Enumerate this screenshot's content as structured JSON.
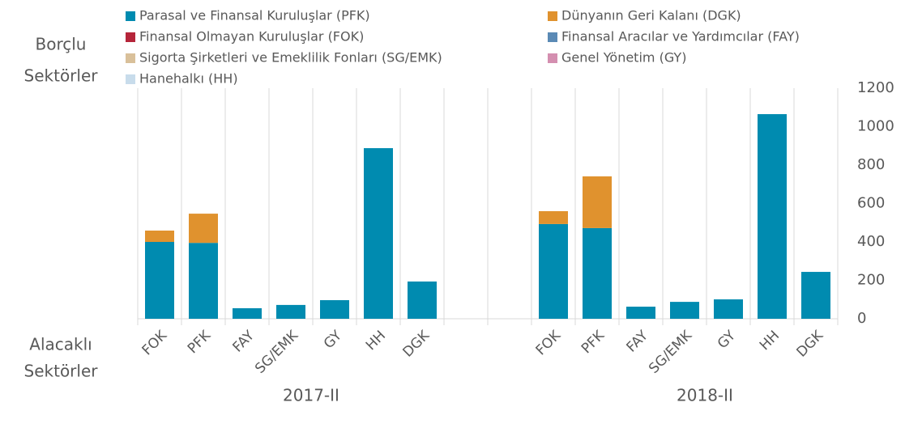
{
  "chart_data": {
    "type": "stacked_bar",
    "annotations": [
      "Borçlu",
      "Sektörler",
      "Alacaklı",
      "Sektörler"
    ],
    "group_labels": [
      "2017-II",
      "2018-II"
    ],
    "categories": [
      "FOK",
      "PFK",
      "FAY",
      "SG/EMK",
      "GY",
      "HH",
      "DGK",
      null,
      null,
      "FOK",
      "PFK",
      "FAY",
      "SG/EMK",
      "GY",
      "HH",
      "DGK"
    ],
    "series": [
      {
        "name": "Parasal ve Finansal Kuruluşlar (PFK)",
        "color": "#008bb0",
        "values": [
          400,
          395,
          55,
          72,
          97,
          888,
          194,
          null,
          null,
          493,
          472,
          63,
          88,
          101,
          1065,
          244
        ]
      },
      {
        "name": "Dünyanın Geri Kalanı (DGK)",
        "color": "#e0922e",
        "values": [
          59,
          152,
          null,
          null,
          null,
          null,
          null,
          null,
          null,
          67,
          269,
          null,
          null,
          null,
          null,
          null
        ]
      },
      {
        "name": "Finansal Olmayan Kuruluşlar (FOK)",
        "color": "#b5253a",
        "values": [
          null,
          null,
          null,
          null,
          null,
          null,
          null,
          null,
          null,
          null,
          null,
          null,
          null,
          null,
          null,
          null
        ]
      },
      {
        "name": "Finansal Aracılar ve Yardımcılar (FAY)",
        "color": "#5b8ab5",
        "values": [
          null,
          null,
          null,
          null,
          null,
          null,
          null,
          null,
          null,
          null,
          null,
          null,
          null,
          null,
          null,
          null
        ]
      },
      {
        "name": " Sigorta Şirketleri ve Emeklilik Fonları (SG/EMK)",
        "color": "#d9c09a",
        "values": [
          null,
          null,
          null,
          null,
          null,
          null,
          null,
          null,
          null,
          null,
          null,
          null,
          null,
          null,
          null,
          null
        ]
      },
      {
        "name": "Genel Yönetim (GY)",
        "color": "#d48fb0",
        "values": [
          null,
          null,
          null,
          null,
          null,
          null,
          null,
          null,
          null,
          null,
          null,
          null,
          null,
          null,
          null,
          null
        ]
      },
      {
        "name": "Hanehalkı (HH)",
        "color": "#c8dceb",
        "values": [
          null,
          null,
          null,
          null,
          null,
          null,
          null,
          null,
          null,
          null,
          null,
          null,
          null,
          null,
          null,
          null
        ]
      }
    ],
    "ylim": [
      0,
      1200
    ],
    "yticks": [
      0,
      200,
      400,
      600,
      800,
      1000,
      1200
    ],
    "y_axis_side": "right"
  }
}
